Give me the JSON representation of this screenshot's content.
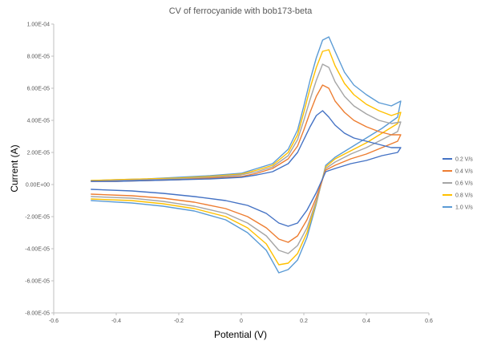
{
  "chart_data": {
    "type": "line",
    "title": "CV of ferrocyanide with bob173-beta",
    "xlabel": "Potential (V)",
    "ylabel": "Current (A)",
    "xlim": [
      -0.6,
      0.6
    ],
    "ylim": [
      -8e-05,
      0.0001
    ],
    "x_ticks": [
      -0.6,
      -0.4,
      -0.2,
      0,
      0.2,
      0.4,
      0.6
    ],
    "x_tick_labels": [
      "-0.6",
      "-0.4",
      "-0.2",
      "0",
      "0.2",
      "0.4",
      "0.6"
    ],
    "y_ticks": [
      -8e-05,
      -6e-05,
      -4e-05,
      -2e-05,
      0,
      2e-05,
      4e-05,
      6e-05,
      8e-05,
      0.0001
    ],
    "y_tick_labels": [
      "-8.00E-05",
      "-6.00E-05",
      "-4.00E-05",
      "-2.00E-05",
      "0.00E+00",
      "2.00E-05",
      "4.00E-05",
      "6.00E-05",
      "8.00E-05",
      "1.00E-04"
    ],
    "grid": false,
    "legend_position": "right",
    "series": [
      {
        "name": "0.2 V/s",
        "color": "#4472C4",
        "points": [
          [
            -0.48,
            2e-06
          ],
          [
            -0.4,
            2e-06
          ],
          [
            -0.3,
            2.5e-06
          ],
          [
            -0.2,
            3e-06
          ],
          [
            -0.1,
            3.5e-06
          ],
          [
            0.0,
            4.5e-06
          ],
          [
            0.05,
            6e-06
          ],
          [
            0.1,
            8e-06
          ],
          [
            0.15,
            1.3e-05
          ],
          [
            0.18,
            2e-05
          ],
          [
            0.2,
            2.8e-05
          ],
          [
            0.22,
            3.6e-05
          ],
          [
            0.24,
            4.3e-05
          ],
          [
            0.26,
            4.6e-05
          ],
          [
            0.28,
            4.2e-05
          ],
          [
            0.3,
            3.7e-05
          ],
          [
            0.33,
            3.2e-05
          ],
          [
            0.36,
            2.9e-05
          ],
          [
            0.4,
            2.7e-05
          ],
          [
            0.44,
            2.5e-05
          ],
          [
            0.48,
            2.3e-05
          ],
          [
            0.51,
            2.3e-05
          ],
          [
            0.5,
            2e-05
          ],
          [
            0.45,
            1.8e-05
          ],
          [
            0.4,
            1.5e-05
          ],
          [
            0.35,
            1.3e-05
          ],
          [
            0.3,
            1e-05
          ],
          [
            0.27,
            8e-06
          ],
          [
            0.24,
            -5e-06
          ],
          [
            0.21,
            -1.6e-05
          ],
          [
            0.18,
            -2.4e-05
          ],
          [
            0.15,
            -2.6e-05
          ],
          [
            0.12,
            -2.4e-05
          ],
          [
            0.08,
            -1.8e-05
          ],
          [
            0.02,
            -1.3e-05
          ],
          [
            -0.05,
            -1e-05
          ],
          [
            -0.15,
            -7.5e-06
          ],
          [
            -0.25,
            -5.5e-06
          ],
          [
            -0.35,
            -4e-06
          ],
          [
            -0.48,
            -3e-06
          ]
        ]
      },
      {
        "name": "0.4 V/s",
        "color": "#ED7D31",
        "points": [
          [
            -0.48,
            2e-06
          ],
          [
            -0.4,
            2e-06
          ],
          [
            -0.3,
            2.5e-06
          ],
          [
            -0.2,
            3e-06
          ],
          [
            -0.1,
            4e-06
          ],
          [
            0.0,
            5e-06
          ],
          [
            0.05,
            7e-06
          ],
          [
            0.1,
            1e-05
          ],
          [
            0.15,
            1.6e-05
          ],
          [
            0.18,
            2.4e-05
          ],
          [
            0.2,
            3.4e-05
          ],
          [
            0.22,
            4.5e-05
          ],
          [
            0.24,
            5.5e-05
          ],
          [
            0.26,
            6.2e-05
          ],
          [
            0.28,
            6e-05
          ],
          [
            0.3,
            5.2e-05
          ],
          [
            0.33,
            4.5e-05
          ],
          [
            0.36,
            4e-05
          ],
          [
            0.4,
            3.6e-05
          ],
          [
            0.44,
            3.3e-05
          ],
          [
            0.48,
            3.1e-05
          ],
          [
            0.51,
            3.1e-05
          ],
          [
            0.5,
            2.7e-05
          ],
          [
            0.45,
            2.3e-05
          ],
          [
            0.4,
            1.9e-05
          ],
          [
            0.35,
            1.6e-05
          ],
          [
            0.3,
            1.2e-05
          ],
          [
            0.27,
            9e-06
          ],
          [
            0.24,
            -8e-06
          ],
          [
            0.21,
            -2.2e-05
          ],
          [
            0.18,
            -3.2e-05
          ],
          [
            0.15,
            -3.6e-05
          ],
          [
            0.12,
            -3.4e-05
          ],
          [
            0.08,
            -2.7e-05
          ],
          [
            0.02,
            -2e-05
          ],
          [
            -0.05,
            -1.5e-05
          ],
          [
            -0.15,
            -1.1e-05
          ],
          [
            -0.25,
            -8.5e-06
          ],
          [
            -0.35,
            -7e-06
          ],
          [
            -0.48,
            -6e-06
          ]
        ]
      },
      {
        "name": "0.6 V/s",
        "color": "#A5A5A5",
        "points": [
          [
            -0.48,
            2e-06
          ],
          [
            -0.4,
            2.5e-06
          ],
          [
            -0.3,
            3e-06
          ],
          [
            -0.2,
            3.5e-06
          ],
          [
            -0.1,
            4.5e-06
          ],
          [
            0.0,
            6e-06
          ],
          [
            0.05,
            8e-06
          ],
          [
            0.1,
            1.1e-05
          ],
          [
            0.15,
            1.8e-05
          ],
          [
            0.18,
            2.8e-05
          ],
          [
            0.2,
            4e-05
          ],
          [
            0.22,
            5.3e-05
          ],
          [
            0.24,
            6.5e-05
          ],
          [
            0.26,
            7.5e-05
          ],
          [
            0.28,
            7.3e-05
          ],
          [
            0.3,
            6.4e-05
          ],
          [
            0.33,
            5.5e-05
          ],
          [
            0.36,
            4.9e-05
          ],
          [
            0.4,
            4.4e-05
          ],
          [
            0.44,
            4e-05
          ],
          [
            0.48,
            3.8e-05
          ],
          [
            0.51,
            3.9e-05
          ],
          [
            0.5,
            3.3e-05
          ],
          [
            0.45,
            2.8e-05
          ],
          [
            0.4,
            2.3e-05
          ],
          [
            0.35,
            1.9e-05
          ],
          [
            0.3,
            1.4e-05
          ],
          [
            0.27,
            1e-05
          ],
          [
            0.24,
            -1e-05
          ],
          [
            0.21,
            -2.7e-05
          ],
          [
            0.18,
            -3.8e-05
          ],
          [
            0.15,
            -4.3e-05
          ],
          [
            0.12,
            -4.1e-05
          ],
          [
            0.08,
            -3.2e-05
          ],
          [
            0.02,
            -2.4e-05
          ],
          [
            -0.05,
            -1.8e-05
          ],
          [
            -0.15,
            -1.35e-05
          ],
          [
            -0.25,
            -1.05e-05
          ],
          [
            -0.35,
            -8.5e-06
          ],
          [
            -0.48,
            -7.5e-06
          ]
        ]
      },
      {
        "name": "0.8 V/s",
        "color": "#FFC000",
        "points": [
          [
            -0.48,
            2.5e-06
          ],
          [
            -0.4,
            3e-06
          ],
          [
            -0.3,
            3.5e-06
          ],
          [
            -0.2,
            4e-06
          ],
          [
            -0.1,
            5e-06
          ],
          [
            0.0,
            6.5e-06
          ],
          [
            0.05,
            9e-06
          ],
          [
            0.1,
            1.2e-05
          ],
          [
            0.15,
            2e-05
          ],
          [
            0.18,
            3.1e-05
          ],
          [
            0.2,
            4.5e-05
          ],
          [
            0.22,
            6e-05
          ],
          [
            0.24,
            7.3e-05
          ],
          [
            0.26,
            8.3e-05
          ],
          [
            0.28,
            8.4e-05
          ],
          [
            0.3,
            7.4e-05
          ],
          [
            0.33,
            6.3e-05
          ],
          [
            0.36,
            5.6e-05
          ],
          [
            0.4,
            5e-05
          ],
          [
            0.44,
            4.6e-05
          ],
          [
            0.48,
            4.3e-05
          ],
          [
            0.51,
            4.5e-05
          ],
          [
            0.5,
            3.8e-05
          ],
          [
            0.45,
            3.2e-05
          ],
          [
            0.4,
            2.6e-05
          ],
          [
            0.35,
            2.1e-05
          ],
          [
            0.3,
            1.6e-05
          ],
          [
            0.27,
            1.1e-05
          ],
          [
            0.24,
            -1.1e-05
          ],
          [
            0.21,
            -3e-05
          ],
          [
            0.18,
            -4.3e-05
          ],
          [
            0.15,
            -4.9e-05
          ],
          [
            0.12,
            -5e-05
          ],
          [
            0.08,
            -3.7e-05
          ],
          [
            0.02,
            -2.7e-05
          ],
          [
            -0.05,
            -2e-05
          ],
          [
            -0.15,
            -1.5e-05
          ],
          [
            -0.25,
            -1.2e-05
          ],
          [
            -0.35,
            -1e-05
          ],
          [
            -0.48,
            -9e-06
          ]
        ]
      },
      {
        "name": "1.0 V/s",
        "color": "#5B9BD5",
        "points": [
          [
            -0.48,
            2.5e-06
          ],
          [
            -0.4,
            3e-06
          ],
          [
            -0.3,
            3.5e-06
          ],
          [
            -0.2,
            4.5e-06
          ],
          [
            -0.1,
            5.5e-06
          ],
          [
            0.0,
            7e-06
          ],
          [
            0.05,
            1e-05
          ],
          [
            0.1,
            1.3e-05
          ],
          [
            0.15,
            2.2e-05
          ],
          [
            0.18,
            3.4e-05
          ],
          [
            0.2,
            4.9e-05
          ],
          [
            0.22,
            6.5e-05
          ],
          [
            0.24,
            7.9e-05
          ],
          [
            0.26,
            9e-05
          ],
          [
            0.28,
            9.2e-05
          ],
          [
            0.3,
            8.3e-05
          ],
          [
            0.33,
            7e-05
          ],
          [
            0.36,
            6.2e-05
          ],
          [
            0.4,
            5.6e-05
          ],
          [
            0.44,
            5.1e-05
          ],
          [
            0.48,
            4.9e-05
          ],
          [
            0.51,
            5.2e-05
          ],
          [
            0.5,
            4.2e-05
          ],
          [
            0.45,
            3.5e-05
          ],
          [
            0.4,
            2.9e-05
          ],
          [
            0.35,
            2.3e-05
          ],
          [
            0.3,
            1.7e-05
          ],
          [
            0.27,
            1.2e-05
          ],
          [
            0.24,
            -1.2e-05
          ],
          [
            0.21,
            -3.3e-05
          ],
          [
            0.18,
            -4.7e-05
          ],
          [
            0.15,
            -5.3e-05
          ],
          [
            0.12,
            -5.5e-05
          ],
          [
            0.08,
            -4.1e-05
          ],
          [
            0.02,
            -3e-05
          ],
          [
            -0.05,
            -2.2e-05
          ],
          [
            -0.15,
            -1.65e-05
          ],
          [
            -0.25,
            -1.35e-05
          ],
          [
            -0.35,
            -1.15e-05
          ],
          [
            -0.48,
            -1e-05
          ]
        ]
      }
    ]
  }
}
